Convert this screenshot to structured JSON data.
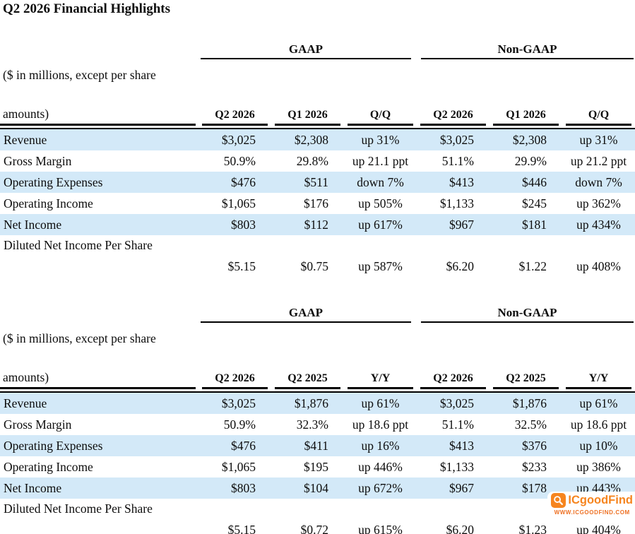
{
  "title": "Q2 2026 Financial Highlights",
  "units_note": {
    "line1": "($ in millions, except per share",
    "line2": "amounts)"
  },
  "colors": {
    "row_shading": "#d3e9f8",
    "header_rule": "#000000",
    "watermark_orange": "#f6851f",
    "watermark_url_orange": "#ee7124"
  },
  "watermark": {
    "icon": "magnifier-icon",
    "brand": "ICgoodFind",
    "url": "WWW.ICGOODFIND.COM"
  },
  "tables": [
    {
      "name": "quarter-over-quarter",
      "group_headers": [
        "GAAP",
        "Non-GAAP"
      ],
      "column_headers": [
        "Q2 2026",
        "Q1 2026",
        "Q/Q",
        "Q2 2026",
        "Q1 2026",
        "Q/Q"
      ],
      "rows": [
        {
          "label": "Revenue",
          "shaded": true,
          "two_line": false,
          "values": [
            "$3,025",
            "$2,308",
            "up 31%",
            "$3,025",
            "$2,308",
            "up 31%"
          ]
        },
        {
          "label": "Gross Margin",
          "shaded": false,
          "two_line": false,
          "values": [
            "50.9%",
            "29.8%",
            "up 21.1 ppt",
            "51.1%",
            "29.9%",
            "up 21.2 ppt"
          ]
        },
        {
          "label": "Operating Expenses",
          "shaded": true,
          "two_line": false,
          "values": [
            "$476",
            "$511",
            "down 7%",
            "$413",
            "$446",
            "down 7%"
          ]
        },
        {
          "label": "Operating Income",
          "shaded": false,
          "two_line": false,
          "values": [
            "$1,065",
            "$176",
            "up 505%",
            "$1,133",
            "$245",
            "up 362%"
          ]
        },
        {
          "label": "Net Income",
          "shaded": true,
          "two_line": false,
          "values": [
            "$803",
            "$112",
            "up 617%",
            "$967",
            "$181",
            "up 434%"
          ]
        },
        {
          "label": "Diluted Net Income Per Share",
          "shaded": false,
          "two_line": true,
          "values": [
            "$5.15",
            "$0.75",
            "up 587%",
            "$6.20",
            "$1.22",
            "up 408%"
          ]
        }
      ]
    },
    {
      "name": "year-over-year",
      "group_headers": [
        "GAAP",
        "Non-GAAP"
      ],
      "column_headers": [
        "Q2 2026",
        "Q2 2025",
        "Y/Y",
        "Q2 2026",
        "Q2 2025",
        "Y/Y"
      ],
      "rows": [
        {
          "label": "Revenue",
          "shaded": true,
          "two_line": false,
          "values": [
            "$3,025",
            "$1,876",
            "up 61%",
            "$3,025",
            "$1,876",
            "up 61%"
          ]
        },
        {
          "label": "Gross Margin",
          "shaded": false,
          "two_line": false,
          "values": [
            "50.9%",
            "32.3%",
            "up 18.6 ppt",
            "51.1%",
            "32.5%",
            "up 18.6 ppt"
          ]
        },
        {
          "label": "Operating Expenses",
          "shaded": true,
          "two_line": false,
          "values": [
            "$476",
            "$411",
            "up 16%",
            "$413",
            "$376",
            "up 10%"
          ]
        },
        {
          "label": "Operating Income",
          "shaded": false,
          "two_line": false,
          "values": [
            "$1,065",
            "$195",
            "up 446%",
            "$1,133",
            "$233",
            "up 386%"
          ]
        },
        {
          "label": "Net Income",
          "shaded": true,
          "two_line": false,
          "values": [
            "$803",
            "$104",
            "up 672%",
            "$967",
            "$178",
            "up 443%"
          ]
        },
        {
          "label": "Diluted Net Income Per Share",
          "shaded": false,
          "two_line": true,
          "values": [
            "$5.15",
            "$0.72",
            "up 615%",
            "$6.20",
            "$1.23",
            "up 404%"
          ]
        }
      ]
    }
  ]
}
